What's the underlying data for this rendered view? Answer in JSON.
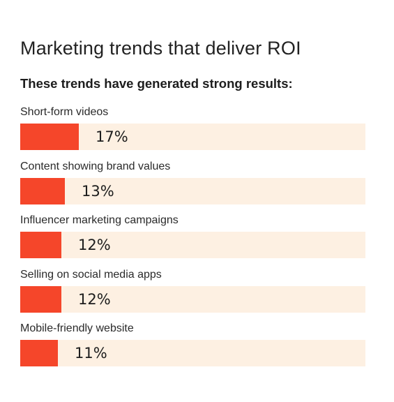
{
  "title": "Marketing trends that deliver ROI",
  "subtitle": "These trends have generated strong results:",
  "colors": {
    "bar": "#f5462a",
    "track": "#fdf0e2",
    "text": "#1d1d1d"
  },
  "chart_data": {
    "type": "bar",
    "orientation": "horizontal",
    "title": "Marketing trends that deliver ROI",
    "subtitle": "These trends have generated strong results:",
    "categories": [
      "Short-form videos",
      "Content showing brand values",
      "Influencer marketing campaigns",
      "Selling on social media apps",
      "Mobile-friendly website"
    ],
    "values": [
      17,
      13,
      12,
      12,
      11
    ],
    "value_labels": [
      "17%",
      "13%",
      "12%",
      "12%",
      "11%"
    ],
    "unit": "%",
    "xlim": [
      0,
      100
    ],
    "grid": false,
    "legend": "none"
  }
}
